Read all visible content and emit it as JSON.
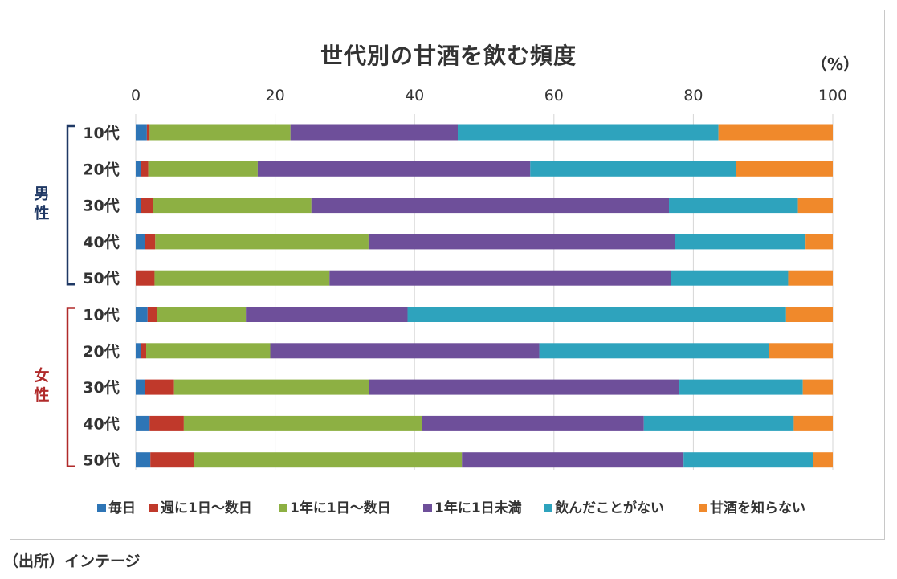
{
  "chart_data": {
    "type": "bar",
    "orientation": "horizontal",
    "stacked": true,
    "title": "世代別の甘酒を飲む頻度",
    "unit_label": "（%）",
    "xlim": [
      0,
      100
    ],
    "x_ticks": [
      "0",
      "20",
      "40",
      "60",
      "80",
      "100"
    ],
    "grid": true,
    "legend_position": "bottom",
    "groups": [
      {
        "label": "男性",
        "color": "#1f3864",
        "categories": [
          "10代",
          "20代",
          "30代",
          "40代",
          "50代"
        ]
      },
      {
        "label": "女性",
        "color": "#b02a2a",
        "categories": [
          "10代",
          "20代",
          "30代",
          "40代",
          "50代"
        ]
      }
    ],
    "categories": [
      "10代",
      "20代",
      "30代",
      "40代",
      "50代",
      "10代",
      "20代",
      "30代",
      "40代",
      "50代"
    ],
    "series": [
      {
        "name": "毎日",
        "color": "#2e75b6",
        "values": [
          1.6,
          0.8,
          0.8,
          1.3,
          0.0,
          1.7,
          0.8,
          1.3,
          2.0,
          2.1
        ]
      },
      {
        "name": "週に1日～数日",
        "color": "#c0392b",
        "values": [
          0.4,
          1.0,
          1.7,
          1.5,
          2.7,
          1.4,
          0.7,
          4.2,
          4.9,
          6.2
        ]
      },
      {
        "name": "1年に1日～数日",
        "color": "#8db043",
        "values": [
          20.2,
          15.7,
          22.7,
          30.6,
          25.1,
          12.7,
          17.8,
          28.0,
          34.2,
          38.5
        ]
      },
      {
        "name": "1年に1日未満",
        "color": "#6e4f9a",
        "values": [
          24.0,
          39.1,
          51.3,
          44.0,
          49.0,
          23.2,
          38.6,
          44.5,
          31.8,
          31.8
        ]
      },
      {
        "name": "飲んだことがない",
        "color": "#2ea3bd",
        "values": [
          37.4,
          29.5,
          18.5,
          18.7,
          16.8,
          54.3,
          33.0,
          17.7,
          21.5,
          18.6
        ]
      },
      {
        "name": "甘酒を知らない",
        "color": "#f0892b",
        "values": [
          16.4,
          13.9,
          5.0,
          3.9,
          6.4,
          6.7,
          9.1,
          4.3,
          5.6,
          2.8
        ]
      }
    ]
  },
  "source": "（出所）インテージ"
}
